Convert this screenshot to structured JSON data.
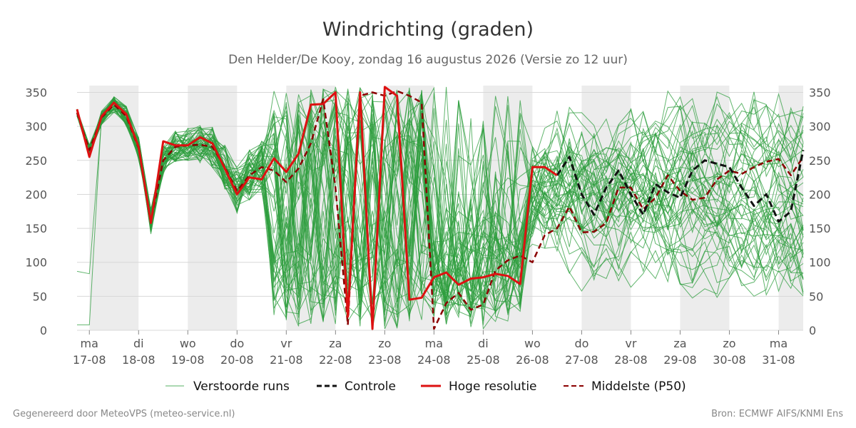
{
  "chart_data": {
    "type": "line",
    "title": "Windrichting (graden)",
    "subtitle": "Den Helder/De Kooy, zondag 16 augustus 2026 (Versie zo 12 uur)",
    "ylim": [
      0,
      360
    ],
    "yticks": [
      0,
      50,
      100,
      150,
      200,
      250,
      300,
      350
    ],
    "xlim": [
      -0.25,
      14.5
    ],
    "x_ticks": [
      {
        "day": "ma",
        "date": "17-08",
        "x": 0
      },
      {
        "day": "di",
        "date": "18-08",
        "x": 1
      },
      {
        "day": "wo",
        "date": "19-08",
        "x": 2
      },
      {
        "day": "do",
        "date": "20-08",
        "x": 3
      },
      {
        "day": "vr",
        "date": "21-08",
        "x": 4
      },
      {
        "day": "za",
        "date": "22-08",
        "x": 5
      },
      {
        "day": "zo",
        "date": "23-08",
        "x": 6
      },
      {
        "day": "ma",
        "date": "24-08",
        "x": 7
      },
      {
        "day": "di",
        "date": "25-08",
        "x": 8
      },
      {
        "day": "wo",
        "date": "26-08",
        "x": 9
      },
      {
        "day": "do",
        "date": "27-08",
        "x": 10
      },
      {
        "day": "vr",
        "date": "28-08",
        "x": 11
      },
      {
        "day": "za",
        "date": "29-08",
        "x": 12
      },
      {
        "day": "zo",
        "date": "30-08",
        "x": 13
      },
      {
        "day": "ma",
        "date": "31-08",
        "x": 14
      }
    ],
    "shaded_days": [
      [
        0,
        1
      ],
      [
        2,
        3
      ],
      [
        4,
        5
      ],
      [
        6,
        7
      ],
      [
        8,
        9
      ],
      [
        10,
        11
      ],
      [
        12,
        13
      ],
      [
        14,
        14.5
      ]
    ],
    "grid": true,
    "legend_position": "bottom",
    "legend": [
      "Verstoorde runs",
      "Controle",
      "Hoge resolutie",
      "Middelste (P50)"
    ],
    "ensemble_member_count": 50,
    "series": [
      {
        "name": "Hoge resolutie",
        "color": "#dd1111",
        "style": "solid",
        "points": [
          [
            -0.25,
            325
          ],
          [
            0,
            255
          ],
          [
            0.25,
            315
          ],
          [
            0.5,
            335
          ],
          [
            0.75,
            318
          ],
          [
            1,
            270
          ],
          [
            1.25,
            158
          ],
          [
            1.5,
            278
          ],
          [
            1.75,
            272
          ],
          [
            2,
            272
          ],
          [
            2.25,
            284
          ],
          [
            2.5,
            275
          ],
          [
            2.75,
            238
          ],
          [
            3,
            200
          ],
          [
            3.25,
            225
          ],
          [
            3.5,
            222
          ],
          [
            3.75,
            253
          ],
          [
            4,
            233
          ],
          [
            4.25,
            260
          ],
          [
            4.5,
            332
          ],
          [
            4.75,
            333
          ],
          [
            5,
            350
          ],
          [
            5.25,
            20
          ],
          [
            5.5,
            350
          ],
          [
            5.75,
            2
          ],
          [
            6,
            358
          ],
          [
            6.25,
            345
          ],
          [
            6.5,
            45
          ],
          [
            6.75,
            48
          ],
          [
            7,
            78
          ],
          [
            7.25,
            85
          ],
          [
            7.5,
            67
          ],
          [
            7.75,
            76
          ],
          [
            8,
            78
          ],
          [
            8.25,
            83
          ],
          [
            8.5,
            80
          ],
          [
            8.75,
            68
          ],
          [
            9,
            240
          ],
          [
            9.25,
            240
          ],
          [
            9.5,
            228
          ]
        ]
      },
      {
        "name": "Controle",
        "color": "#111111",
        "style": "dashed",
        "points": [
          [
            9.5,
            228
          ],
          [
            9.75,
            255
          ],
          [
            10,
            200
          ],
          [
            10.25,
            170
          ],
          [
            10.5,
            210
          ],
          [
            10.75,
            235
          ],
          [
            11,
            200
          ],
          [
            11.25,
            170
          ],
          [
            11.5,
            215
          ],
          [
            11.75,
            203
          ],
          [
            12,
            195
          ],
          [
            12.25,
            235
          ],
          [
            12.5,
            250
          ],
          [
            12.75,
            245
          ],
          [
            13,
            240
          ],
          [
            13.25,
            210
          ],
          [
            13.5,
            183
          ],
          [
            13.75,
            200
          ],
          [
            14,
            160
          ],
          [
            14.25,
            175
          ],
          [
            14.5,
            265
          ]
        ]
      },
      {
        "name": "Middelste (P50)",
        "color": "#8b0000",
        "style": "dashed",
        "points": [
          [
            -0.25,
            320
          ],
          [
            0,
            265
          ],
          [
            0.25,
            313
          ],
          [
            0.5,
            332
          ],
          [
            0.75,
            315
          ],
          [
            1,
            268
          ],
          [
            1.25,
            160
          ],
          [
            1.5,
            250
          ],
          [
            1.75,
            270
          ],
          [
            2,
            272
          ],
          [
            2.25,
            273
          ],
          [
            2.5,
            270
          ],
          [
            2.75,
            240
          ],
          [
            3,
            205
          ],
          [
            3.25,
            228
          ],
          [
            3.5,
            240
          ],
          [
            3.75,
            235
          ],
          [
            4,
            218
          ],
          [
            4.25,
            238
          ],
          [
            4.5,
            275
          ],
          [
            4.75,
            340
          ],
          [
            5,
            210
          ],
          [
            5.25,
            8
          ],
          [
            5.5,
            345
          ],
          [
            5.75,
            350
          ],
          [
            6,
            345
          ],
          [
            6.25,
            352
          ],
          [
            6.5,
            345
          ],
          [
            6.75,
            335
          ],
          [
            7,
            2
          ],
          [
            7.25,
            40
          ],
          [
            7.5,
            55
          ],
          [
            7.75,
            30
          ],
          [
            8,
            38
          ],
          [
            8.25,
            88
          ],
          [
            8.5,
            103
          ],
          [
            8.75,
            110
          ],
          [
            9,
            100
          ],
          [
            9.25,
            140
          ],
          [
            9.5,
            150
          ],
          [
            9.75,
            182
          ],
          [
            10,
            144
          ],
          [
            10.25,
            145
          ],
          [
            10.5,
            158
          ],
          [
            10.75,
            210
          ],
          [
            11,
            210
          ],
          [
            11.25,
            178
          ],
          [
            11.5,
            195
          ],
          [
            11.75,
            228
          ],
          [
            12,
            205
          ],
          [
            12.25,
            192
          ],
          [
            12.5,
            195
          ],
          [
            12.75,
            222
          ],
          [
            13,
            235
          ],
          [
            13.25,
            230
          ],
          [
            13.5,
            240
          ],
          [
            13.75,
            248
          ],
          [
            14,
            252
          ],
          [
            14.25,
            228
          ],
          [
            14.5,
            255
          ]
        ]
      }
    ]
  },
  "legend_labels": {
    "ens": "Verstoorde runs",
    "control": "Controle",
    "hres": "Hoge resolutie",
    "median": "Middelste (P50)"
  },
  "colors": {
    "ensemble": "#2e9e3e",
    "control": "#111111",
    "hres": "#dd1111",
    "median": "#8b0000",
    "shade": "#ececec",
    "grid": "#d8d8d8"
  },
  "footer": {
    "left": "Gegenereerd door MeteoVPS (meteo-service.nl)",
    "right": "Bron: ECMWF AIFS/KNMI Ens"
  }
}
